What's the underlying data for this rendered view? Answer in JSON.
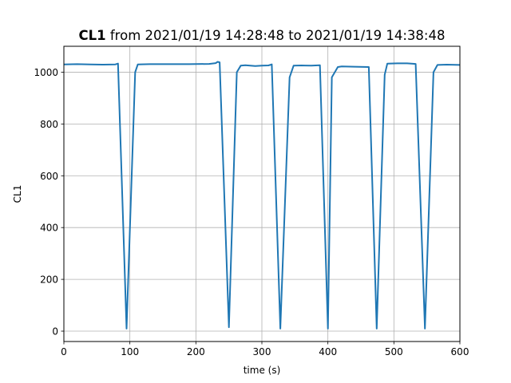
{
  "chart_data": {
    "type": "line",
    "title_bold": "CL1",
    "title_rest": " from 2021/01/19 14:28:48 to 2021/01/19 14:38:48",
    "xlabel": "time (s)",
    "ylabel": "CL1",
    "xlim": [
      0,
      600
    ],
    "ylim": [
      -40,
      1100
    ],
    "xticks": [
      0,
      100,
      200,
      300,
      400,
      500,
      600
    ],
    "yticks": [
      0,
      200,
      400,
      600,
      800,
      1000
    ],
    "grid": true,
    "color": "#1f77b4",
    "series": [
      {
        "x": [
          0,
          20,
          40,
          60,
          78,
          82,
          95,
          108,
          112,
          130,
          160,
          190,
          220,
          230,
          233,
          236,
          250,
          262,
          268,
          275,
          290,
          300,
          310,
          315,
          328,
          342,
          348,
          360,
          375,
          388,
          400,
          406,
          415,
          421,
          440,
          462,
          474,
          486,
          490,
          505,
          520,
          533,
          547,
          560,
          566,
          580,
          600
        ],
        "y": [
          1030,
          1031,
          1030,
          1029,
          1030,
          1033,
          10,
          1000,
          1030,
          1031,
          1031,
          1031,
          1032,
          1035,
          1040,
          1038,
          15,
          1000,
          1025,
          1027,
          1024,
          1025,
          1026,
          1030,
          10,
          980,
          1025,
          1026,
          1025,
          1027,
          10,
          980,
          1020,
          1022,
          1021,
          1020,
          10,
          990,
          1033,
          1034,
          1034,
          1032,
          10,
          1000,
          1028,
          1029,
          1028
        ]
      }
    ]
  }
}
